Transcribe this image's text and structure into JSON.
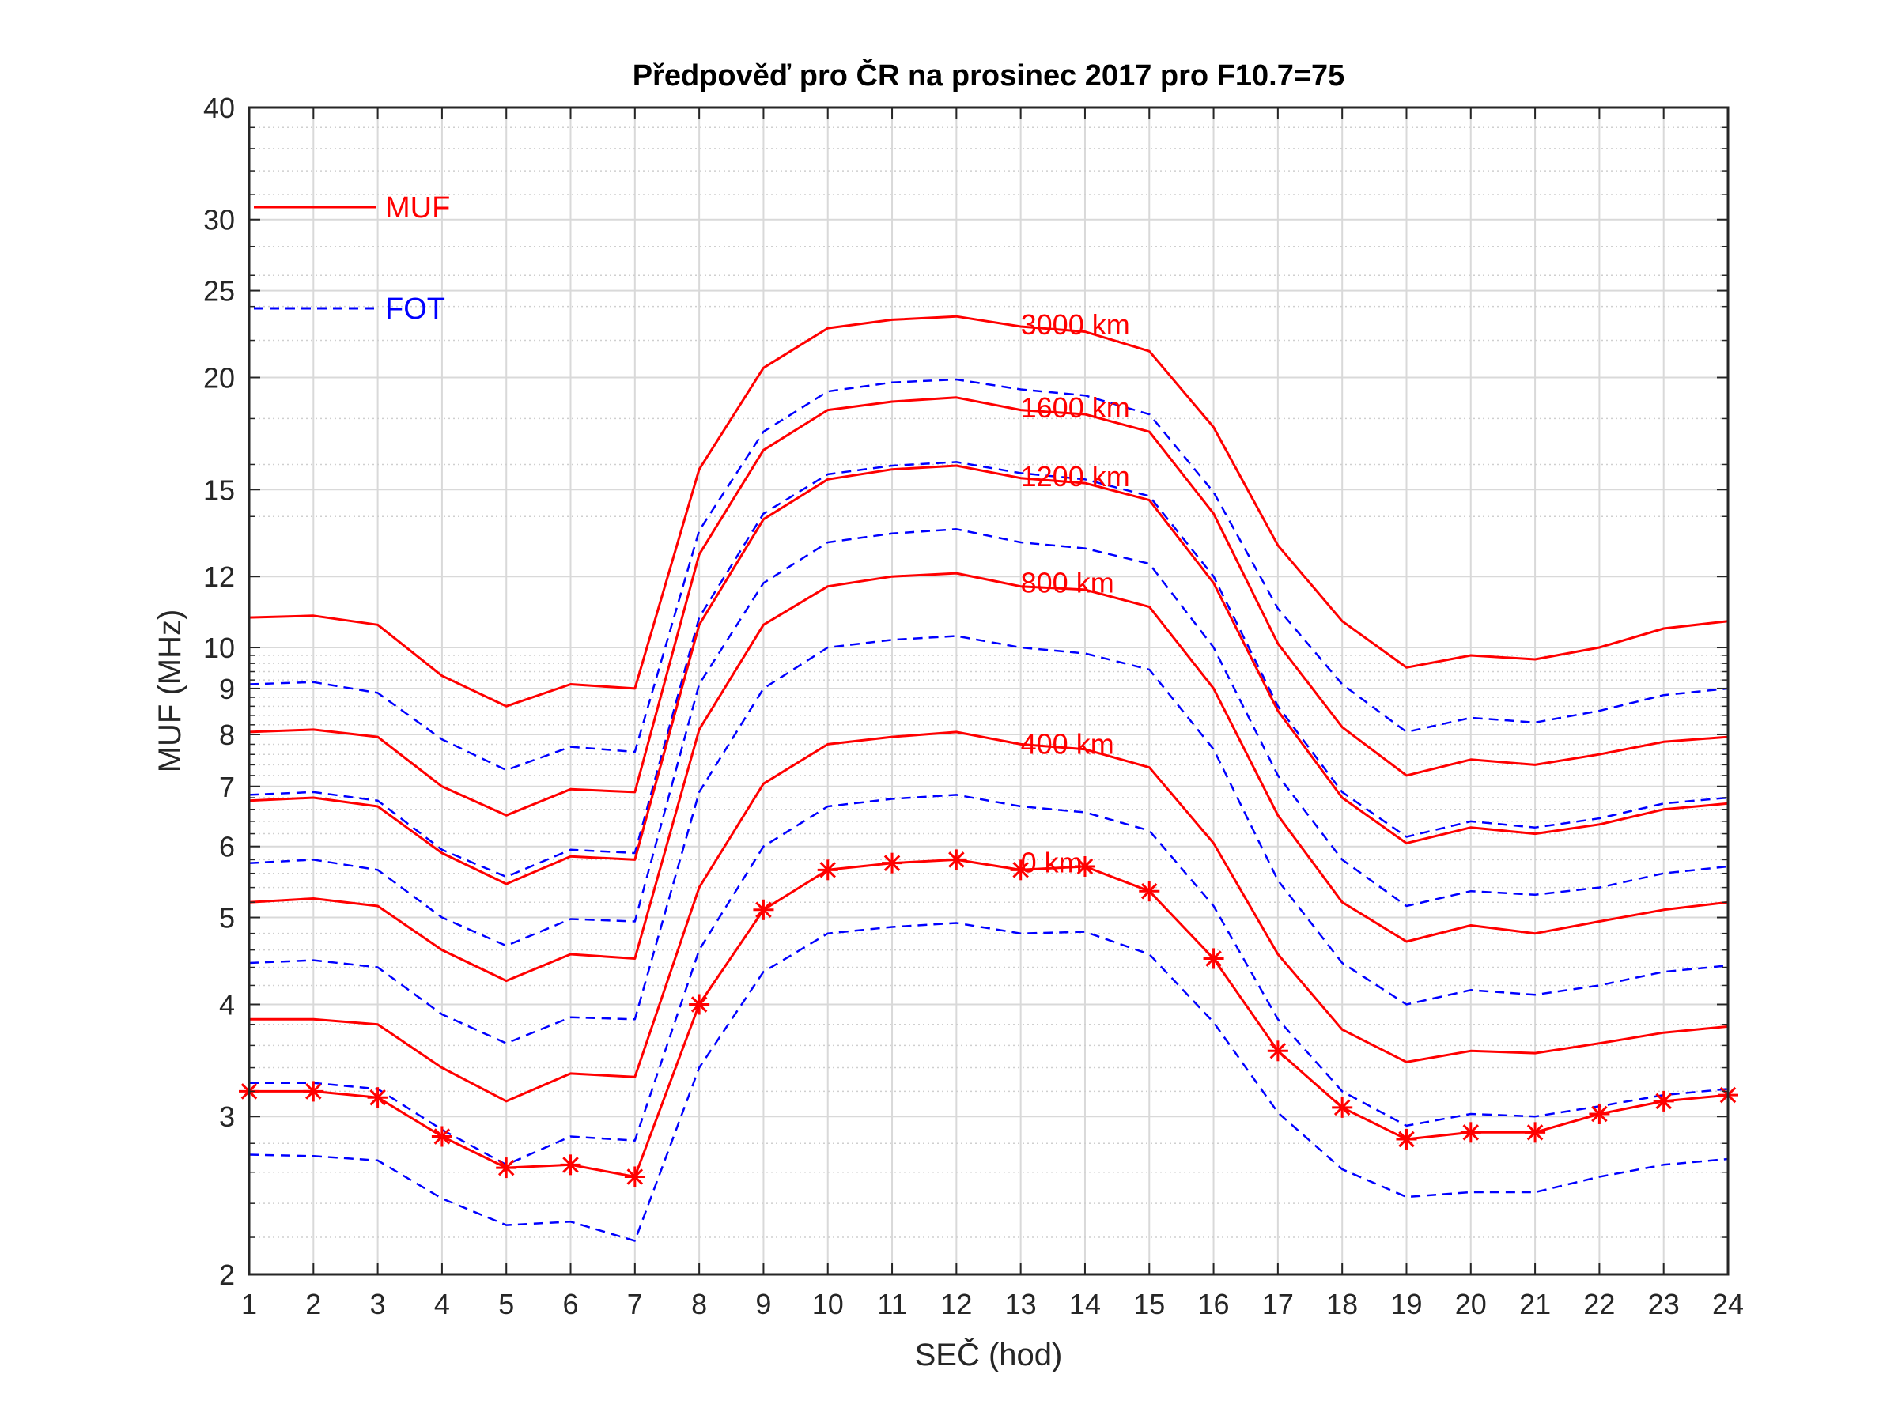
{
  "chart_data": {
    "type": "line",
    "title": "Předpověď pro ČR na prosinec 2017 pro F10.7=75",
    "xlabel": "SEČ (hod)",
    "ylabel": "MUF (MHz)",
    "xlim": [
      1,
      24
    ],
    "ylim": [
      2,
      40
    ],
    "yscale": "log",
    "grid": true,
    "x": [
      1,
      2,
      3,
      4,
      5,
      6,
      7,
      8,
      9,
      10,
      11,
      12,
      13,
      14,
      15,
      16,
      17,
      18,
      19,
      20,
      21,
      22,
      23,
      24
    ],
    "xticks": [
      "1",
      "2",
      "3",
      "4",
      "5",
      "6",
      "7",
      "8",
      "9",
      "10",
      "11",
      "12",
      "13",
      "14",
      "15",
      "16",
      "17",
      "18",
      "19",
      "20",
      "21",
      "22",
      "23",
      "24"
    ],
    "yticks": [
      {
        "value": 2,
        "label": "2"
      },
      {
        "value": 3,
        "label": "3"
      },
      {
        "value": 4,
        "label": "4"
      },
      {
        "value": 5,
        "label": "5"
      },
      {
        "value": 6,
        "label": "6"
      },
      {
        "value": 7,
        "label": "7"
      },
      {
        "value": 8,
        "label": "8"
      },
      {
        "value": 9,
        "label": "9"
      },
      {
        "value": 10,
        "label": "10"
      },
      {
        "value": 12,
        "label": "12"
      },
      {
        "value": 15,
        "label": "15"
      },
      {
        "value": 20,
        "label": "20"
      },
      {
        "value": 25,
        "label": "25"
      },
      {
        "value": 30,
        "label": "30"
      },
      {
        "value": 40,
        "label": "40"
      }
    ],
    "legend": [
      {
        "label": "MUF",
        "style": "solid",
        "color": "#ff0000"
      },
      {
        "label": "FOT",
        "style": "dashed",
        "color": "#0000ff"
      }
    ],
    "legend_position": "top-left",
    "colors": {
      "muf": "#ff0000",
      "fot": "#0000ff"
    },
    "series": [
      {
        "distance": "3000 km",
        "kind": "MUF",
        "style": "solid",
        "color": "#ff0000",
        "values": [
          10.8,
          10.85,
          10.6,
          9.3,
          8.6,
          9.1,
          9.0,
          15.8,
          20.5,
          22.7,
          23.2,
          23.4,
          22.8,
          22.5,
          21.4,
          17.6,
          13.0,
          10.7,
          9.5,
          9.8,
          9.7,
          10.0,
          10.5,
          10.7
        ]
      },
      {
        "distance": "3000 km",
        "kind": "FOT",
        "style": "dashed",
        "color": "#0000ff",
        "values": [
          9.1,
          9.15,
          8.9,
          7.9,
          7.3,
          7.75,
          7.65,
          13.5,
          17.4,
          19.3,
          19.75,
          19.9,
          19.4,
          19.1,
          18.2,
          14.9,
          11.05,
          9.1,
          8.05,
          8.35,
          8.25,
          8.5,
          8.85,
          9.0
        ]
      },
      {
        "distance": "1600 km",
        "kind": "MUF",
        "style": "solid",
        "color": "#ff0000",
        "values": [
          8.05,
          8.1,
          7.95,
          7.0,
          6.5,
          6.95,
          6.9,
          12.7,
          16.6,
          18.4,
          18.8,
          19.0,
          18.4,
          18.2,
          17.4,
          14.1,
          10.1,
          8.15,
          7.2,
          7.5,
          7.4,
          7.6,
          7.85,
          7.95
        ]
      },
      {
        "distance": "1600 km",
        "kind": "FOT",
        "style": "dashed",
        "color": "#0000ff",
        "values": [
          6.85,
          6.9,
          6.75,
          5.95,
          5.55,
          5.95,
          5.9,
          10.8,
          14.1,
          15.6,
          15.95,
          16.1,
          15.65,
          15.4,
          14.75,
          12.0,
          8.6,
          6.9,
          6.15,
          6.4,
          6.3,
          6.45,
          6.7,
          6.8
        ]
      },
      {
        "distance": "1200 km",
        "kind": "MUF",
        "style": "solid",
        "color": "#ff0000",
        "values": [
          6.75,
          6.8,
          6.65,
          5.9,
          5.45,
          5.85,
          5.8,
          10.6,
          13.9,
          15.4,
          15.8,
          15.95,
          15.45,
          15.25,
          14.6,
          11.8,
          8.5,
          6.8,
          6.05,
          6.3,
          6.2,
          6.35,
          6.6,
          6.7
        ]
      },
      {
        "distance": "1200 km",
        "kind": "FOT",
        "style": "dashed",
        "color": "#0000ff",
        "values": [
          5.75,
          5.8,
          5.65,
          5.0,
          4.65,
          4.98,
          4.95,
          9.1,
          11.8,
          13.1,
          13.4,
          13.55,
          13.1,
          12.9,
          12.4,
          10.0,
          7.2,
          5.8,
          5.15,
          5.35,
          5.3,
          5.4,
          5.6,
          5.7
        ]
      },
      {
        "distance": "800 km",
        "kind": "MUF",
        "style": "solid",
        "color": "#ff0000",
        "values": [
          5.2,
          5.25,
          5.15,
          4.6,
          4.25,
          4.55,
          4.5,
          8.1,
          10.6,
          11.7,
          12.0,
          12.1,
          11.7,
          11.6,
          11.1,
          9.0,
          6.5,
          5.2,
          4.7,
          4.9,
          4.8,
          4.95,
          5.1,
          5.2
        ]
      },
      {
        "distance": "800 km",
        "kind": "FOT",
        "style": "dashed",
        "color": "#0000ff",
        "values": [
          4.45,
          4.48,
          4.4,
          3.9,
          3.62,
          3.87,
          3.85,
          6.9,
          9.0,
          10.0,
          10.2,
          10.3,
          10.0,
          9.85,
          9.45,
          7.7,
          5.5,
          4.45,
          4.0,
          4.15,
          4.1,
          4.2,
          4.35,
          4.42
        ]
      },
      {
        "distance": "400 km",
        "kind": "MUF",
        "style": "solid",
        "color": "#ff0000",
        "values": [
          3.85,
          3.85,
          3.8,
          3.4,
          3.12,
          3.35,
          3.32,
          5.4,
          7.05,
          7.8,
          7.95,
          8.05,
          7.8,
          7.7,
          7.35,
          6.05,
          4.55,
          3.75,
          3.45,
          3.55,
          3.53,
          3.62,
          3.72,
          3.78
        ]
      },
      {
        "distance": "400 km",
        "kind": "FOT",
        "style": "dashed",
        "color": "#0000ff",
        "values": [
          3.27,
          3.27,
          3.22,
          2.9,
          2.65,
          2.85,
          2.82,
          4.6,
          6.0,
          6.65,
          6.78,
          6.85,
          6.65,
          6.55,
          6.25,
          5.15,
          3.85,
          3.2,
          2.93,
          3.02,
          3.0,
          3.08,
          3.17,
          3.22
        ]
      },
      {
        "distance": "0 km",
        "kind": "MUF",
        "style": "solid",
        "color": "#ff0000",
        "markers": "asterisk",
        "values": [
          3.2,
          3.2,
          3.15,
          2.85,
          2.63,
          2.65,
          2.57,
          4.0,
          5.1,
          5.65,
          5.75,
          5.8,
          5.65,
          5.7,
          5.35,
          4.5,
          3.55,
          3.07,
          2.83,
          2.88,
          2.88,
          3.02,
          3.12,
          3.17
        ]
      },
      {
        "distance": "0 km",
        "kind": "FOT",
        "style": "dashed",
        "color": "#0000ff",
        "values": [
          2.72,
          2.71,
          2.68,
          2.43,
          2.27,
          2.29,
          2.18,
          3.4,
          4.35,
          4.8,
          4.88,
          4.93,
          4.8,
          4.82,
          4.55,
          3.82,
          3.03,
          2.62,
          2.44,
          2.47,
          2.47,
          2.57,
          2.65,
          2.69
        ]
      }
    ],
    "annotations": [
      {
        "text": "3000 km",
        "x": 13,
        "y": 22.9
      },
      {
        "text": "1600 km",
        "x": 13,
        "y": 18.5
      },
      {
        "text": "1200 km",
        "x": 13,
        "y": 15.5
      },
      {
        "text": "800 km",
        "x": 13,
        "y": 11.8
      },
      {
        "text": "400 km",
        "x": 13,
        "y": 7.8
      },
      {
        "text": "0 km",
        "x": 13,
        "y": 5.75
      }
    ]
  }
}
